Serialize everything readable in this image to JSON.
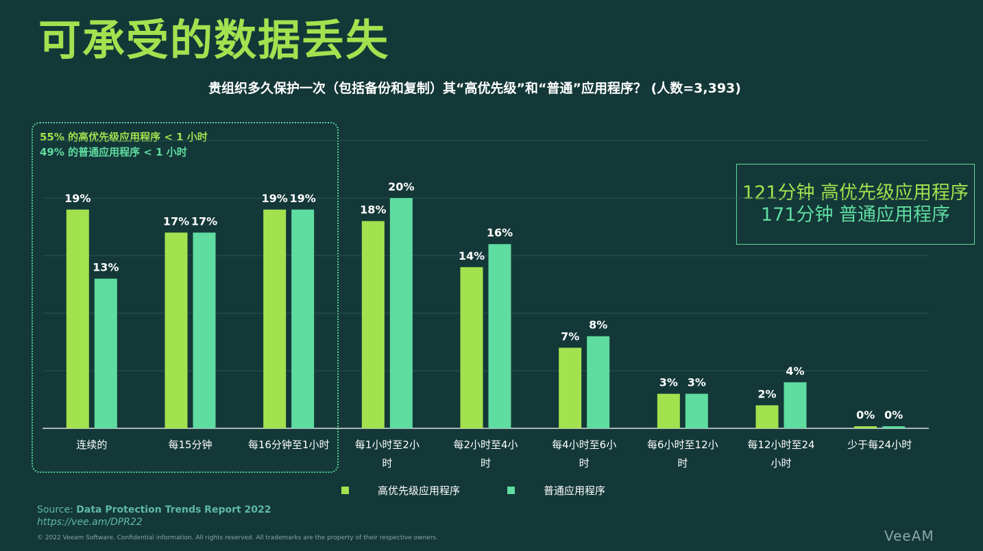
{
  "title": "可承受的数据丢失",
  "subtitle": "贵组织多久保护一次（包括备份和复制）其“高优先级”和“普通”应用程序？ (人数=3,393)",
  "box_notes": [
    "55% 的高优先级应用程序 < 1 小时",
    "49% 的普通应用程序 < 1 小时"
  ],
  "info_box": [
    "121分钟 高优先级应用程序",
    "171分钟 普通应用程序"
  ],
  "source_label": "Source:",
  "source_title": "Data Protection Trends Report 2022",
  "source_url": "https://vee.am/DPR22",
  "copyright": "© 2022 Veeam Software. Confidential information. All rights reserved. All trademarks are the property of their respective owners.",
  "logo": "VeeAM",
  "colors": {
    "high": "#a3e24f",
    "normal": "#5fdca0",
    "background": "#143838"
  },
  "chart_data": {
    "type": "bar",
    "categories": [
      [
        "连续的"
      ],
      [
        "每15分钟"
      ],
      [
        "每16分钟至1小时"
      ],
      [
        "每1小时至2小",
        "时"
      ],
      [
        "每2小时至4小",
        "时"
      ],
      [
        "每4小时至6小",
        "时"
      ],
      [
        "每6小时至12小",
        "时"
      ],
      [
        "每12小时至24",
        "小时"
      ],
      [
        "少于每24小时"
      ]
    ],
    "series": [
      {
        "name": "高优先级应用程序",
        "values": [
          19,
          17,
          19,
          18,
          14,
          7,
          3,
          2,
          0
        ],
        "labels": [
          "19%",
          "17%",
          "19%",
          "18%",
          "14%",
          "7%",
          "3%",
          "2%",
          "0%"
        ]
      },
      {
        "name": "普通应用程序",
        "values": [
          13,
          17,
          19,
          20,
          16,
          8,
          3,
          4,
          0
        ],
        "labels": [
          "13%",
          "17%",
          "19%",
          "20%",
          "16%",
          "8%",
          "3%",
          "4%",
          "0%"
        ]
      }
    ],
    "ylim": [
      0,
      25
    ],
    "grid": true,
    "legend": "bottom"
  }
}
